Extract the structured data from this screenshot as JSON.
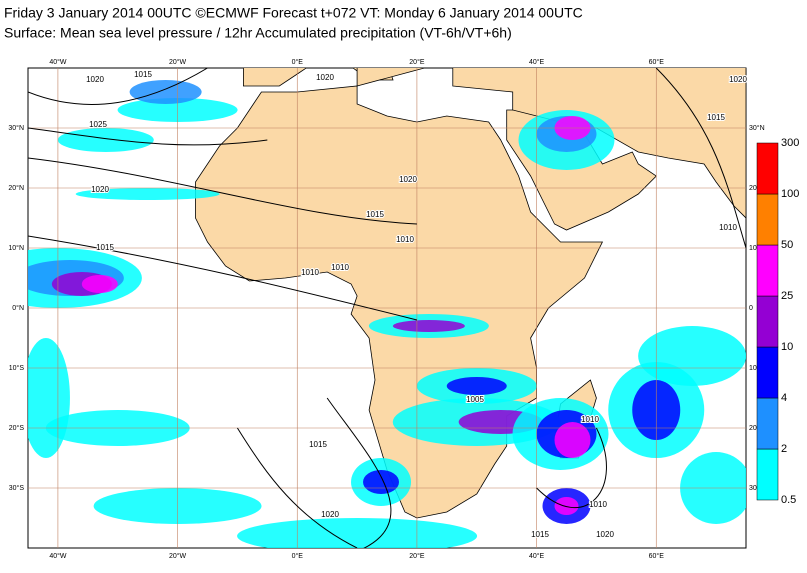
{
  "header": {
    "line1": "Friday 3 January 2014 00UTC ©ECMWF Forecast t+072 VT: Monday 6 January 2014 00UTC",
    "line2": "Surface: Mean sea level pressure / 12hr Accumulated precipitation (VT-6h/VT+6h)"
  },
  "map": {
    "lon_range": [
      -45,
      75
    ],
    "lat_range": [
      -40,
      40
    ],
    "lon_ticks": [
      {
        "value": -40,
        "label": "40°W"
      },
      {
        "value": -20,
        "label": "20°W"
      },
      {
        "value": 0,
        "label": "0°E"
      },
      {
        "value": 20,
        "label": "20°E"
      },
      {
        "value": 40,
        "label": "40°E"
      },
      {
        "value": 60,
        "label": "60°E"
      }
    ],
    "lat_ticks_left": [
      {
        "value": 30,
        "label": "30°N"
      },
      {
        "value": 20,
        "label": "20°N"
      },
      {
        "value": 10,
        "label": "10°N"
      },
      {
        "value": 0,
        "label": "0°N"
      },
      {
        "value": -10,
        "label": "10°S"
      },
      {
        "value": -20,
        "label": "20°S"
      },
      {
        "value": -30,
        "label": "30°S"
      }
    ],
    "lat_ticks_right": [
      {
        "value": 30,
        "label": "30°N"
      },
      {
        "value": 20,
        "label": "20"
      },
      {
        "value": 10,
        "label": "10"
      },
      {
        "value": 0,
        "label": "0"
      },
      {
        "value": -10,
        "label": "10"
      },
      {
        "value": -20,
        "label": "20"
      },
      {
        "value": -30,
        "label": "30"
      }
    ]
  },
  "isobar_labels": [
    "1015",
    "1020",
    "1025",
    "1020",
    "1015",
    "1020",
    "1020",
    "1015",
    "1010",
    "1010",
    "1010",
    "1005",
    "1010",
    "1015",
    "1020",
    "1010",
    "1015",
    "1020",
    "1010",
    "1015",
    "1020"
  ],
  "colorbar": {
    "levels": [
      0.5,
      2,
      4,
      10,
      25,
      50,
      100,
      300
    ],
    "colors": [
      "#00ffff",
      "#1e90ff",
      "#0000ff",
      "#9400d3",
      "#ff00ff",
      "#ff8000",
      "#ff0000"
    ]
  }
}
